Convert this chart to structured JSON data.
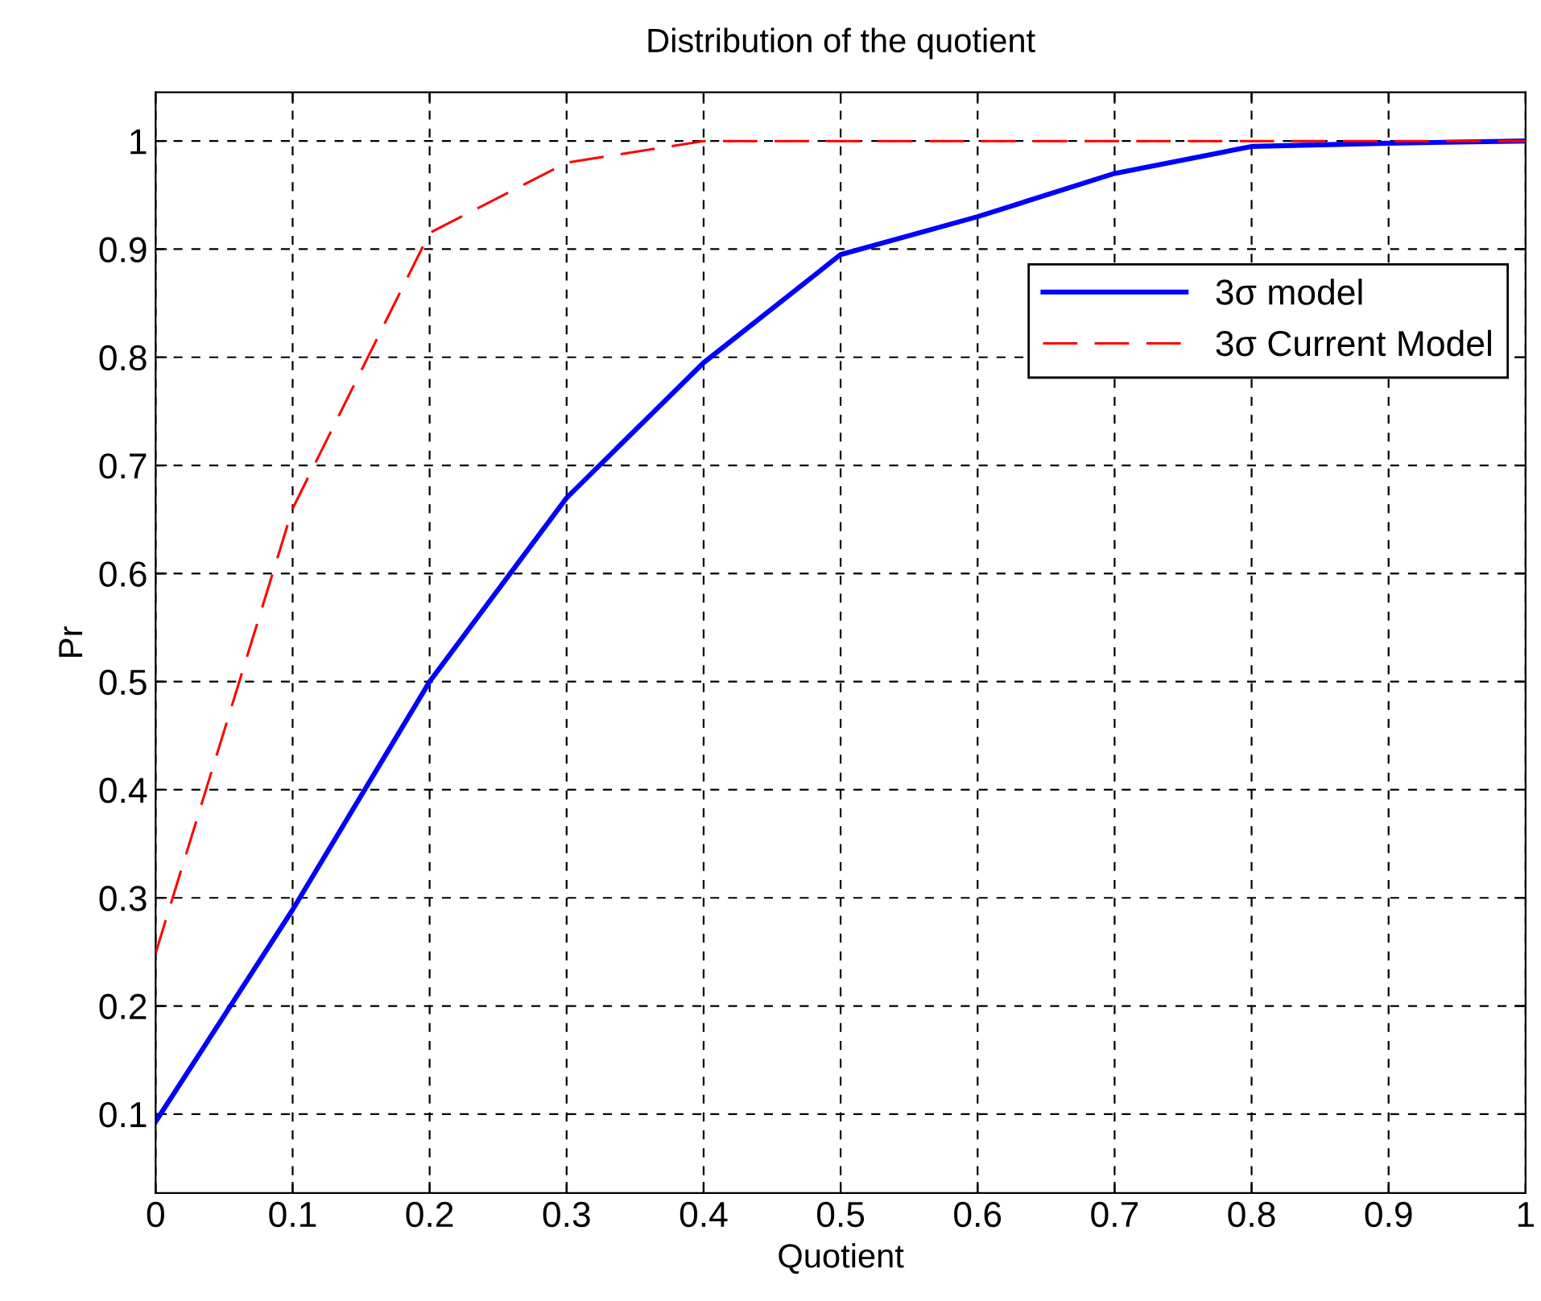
{
  "chart_data": {
    "type": "line",
    "title": "Distribution of the quotient",
    "xlabel": "Quotient",
    "ylabel": "Pr",
    "x": [
      0,
      0.1,
      0.2,
      0.3,
      0.4,
      0.5,
      0.6,
      0.7,
      0.8,
      0.9,
      1
    ],
    "series": [
      {
        "name": "3σ model",
        "color": "#0000ff",
        "line_style": "solid",
        "values": [
          0.093,
          0.289,
          0.5,
          0.67,
          0.795,
          0.895,
          0.93,
          0.97,
          0.995,
          0.998,
          1
        ]
      },
      {
        "name": "3σ Current Model",
        "color": "#ff0000",
        "line_style": "dashed",
        "values": [
          0.249,
          0.66,
          0.915,
          0.98,
          1,
          1,
          1,
          1,
          1,
          1,
          1
        ]
      }
    ],
    "xlim": [
      0,
      1
    ],
    "ylim": [
      0.027,
      1.045
    ],
    "xticks": [
      0,
      0.1,
      0.2,
      0.3,
      0.4,
      0.5,
      0.6,
      0.7,
      0.8,
      0.9,
      1
    ],
    "yticks": [
      0.1,
      0.2,
      0.3,
      0.4,
      0.5,
      0.6,
      0.7,
      0.8,
      0.9,
      1
    ],
    "grid": true,
    "legend": "top right",
    "marker": "none"
  }
}
